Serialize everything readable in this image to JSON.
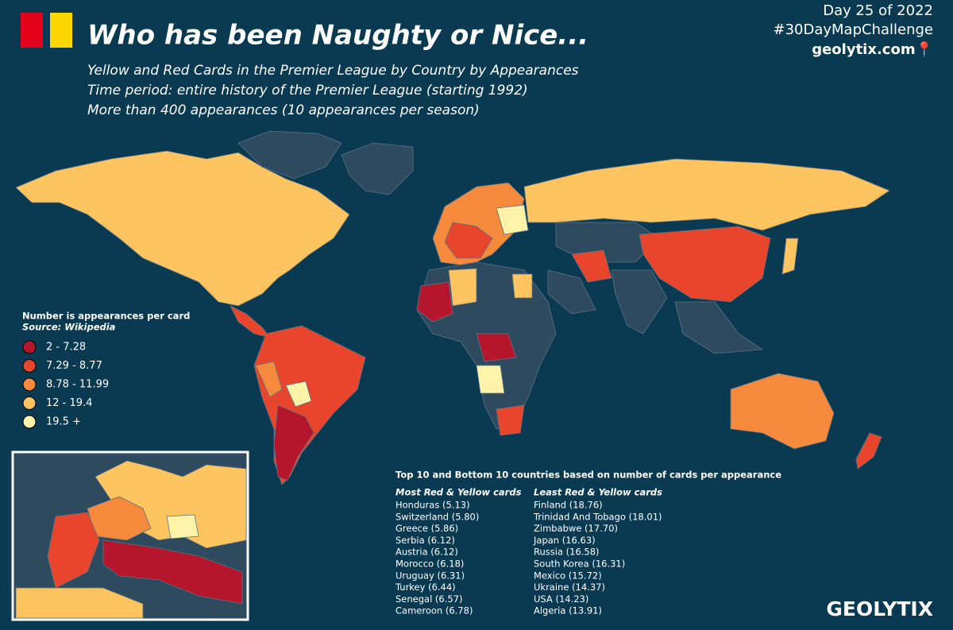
{
  "header": {
    "title": "Who has been Naughty or Nice...",
    "subtitles": [
      "Yellow and Red Cards in the Premier League by Country by Appearances",
      "Time period: entire history of the Premier League (starting 1992)",
      "More than 400 appearances (10 appearances per season)"
    ],
    "day": "Day 25 of 2022",
    "hashtag": "#30DayMapChallenge",
    "site": "geolytix.com📍"
  },
  "legend": {
    "title": "Number is appearances per card",
    "source": "Source: Wikipedia",
    "classes": [
      {
        "label": "2 - 7.28",
        "color": "#b5162b"
      },
      {
        "label": "7.29 - 8.77",
        "color": "#e8452c"
      },
      {
        "label": "8.78 - 11.99",
        "color": "#f58a3c"
      },
      {
        "label": "12 - 19.4",
        "color": "#fdc460"
      },
      {
        "label": "19.5 +",
        "color": "#fef3a8"
      }
    ]
  },
  "ranking": {
    "title": "Top 10 and Bottom 10 countries based on number of cards per appearance",
    "most": {
      "heading": "Most Red & Yellow cards",
      "rows": [
        "Honduras (5.13)",
        "Switzerland (5.80)",
        "Greece (5.86)",
        "Serbia (6.12)",
        "Austria (6.12)",
        "Morocco (6.18)",
        "Uruguay (6.31)",
        "Turkey (6.44)",
        "Senegal (6.57)",
        "Cameroon (6.78)"
      ]
    },
    "least": {
      "heading": "Least Red & Yellow cards",
      "rows": [
        "Finland (18.76)",
        "Trinidad And Tobago (18.01)",
        "Zimbabwe (17.70)",
        "Japan (16.63)",
        "Russia (16.58)",
        "South Korea (16.31)",
        "Mexico (15.72)",
        "Ukraine (14.37)",
        "USA (14.23)",
        "Algeria (13.91)"
      ]
    }
  },
  "logo": "GEOLYTIX"
}
